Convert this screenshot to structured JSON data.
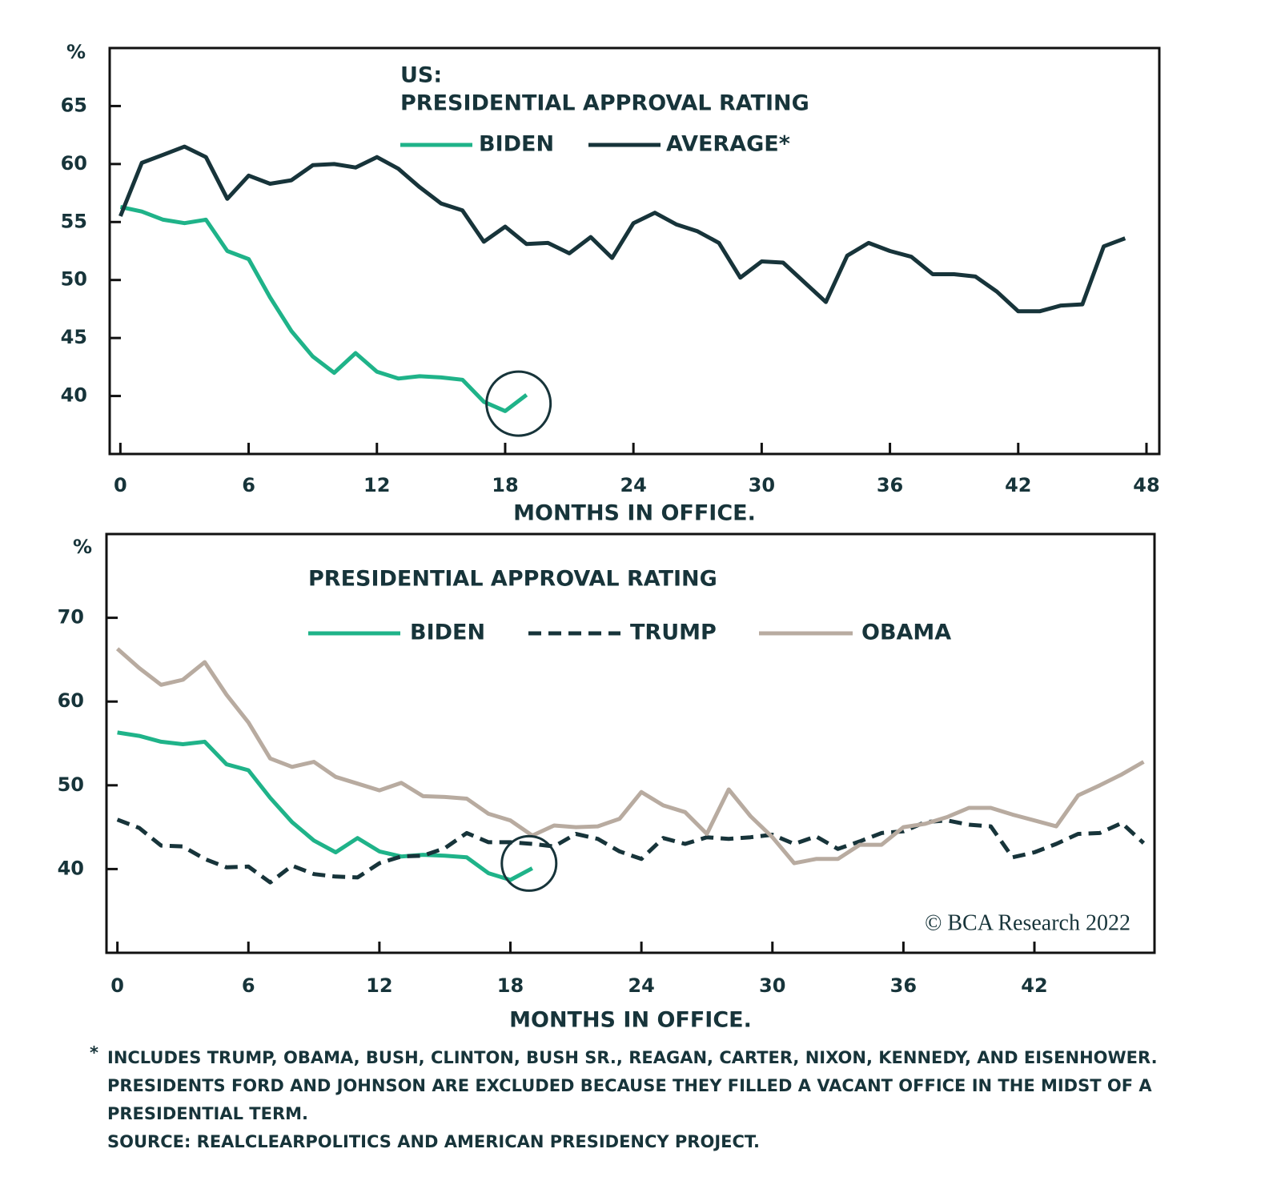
{
  "chart_data": [
    {
      "type": "line",
      "title": [
        "US:",
        "PRESIDENTIAL APPROVAL RATING"
      ],
      "y_unit": "%",
      "x_label": "MONTHS IN OFFICE.",
      "x": [
        0,
        1,
        2,
        3,
        4,
        5,
        6,
        7,
        8,
        9,
        10,
        11,
        12,
        13,
        14,
        15,
        16,
        17,
        18,
        19,
        20,
        21,
        22,
        23,
        24,
        25,
        26,
        27,
        28,
        29,
        30,
        31,
        32,
        33,
        34,
        35,
        36,
        37,
        38,
        39,
        40,
        41,
        42,
        43,
        44,
        45,
        46,
        47
      ],
      "xlim": [
        -0.5,
        48.6
      ],
      "xticks": [
        0,
        6,
        12,
        18,
        24,
        30,
        36,
        42,
        48
      ],
      "ylim": [
        35,
        70
      ],
      "yticks": [
        40,
        45,
        50,
        55,
        60,
        65
      ],
      "series": [
        {
          "name": "BIDEN",
          "color": "#1fb389",
          "values": [
            56.3,
            55.9,
            55.2,
            54.9,
            55.2,
            52.5,
            51.8,
            48.5,
            45.6,
            43.4,
            42.0,
            43.7,
            42.1,
            41.5,
            41.7,
            41.6,
            41.4,
            39.5,
            38.7,
            40.1,
            null,
            null,
            null,
            null,
            null,
            null,
            null,
            null,
            null,
            null,
            null,
            null,
            null,
            null,
            null,
            null,
            null,
            null,
            null,
            null,
            null,
            null,
            null,
            null,
            null,
            null,
            null,
            null
          ]
        },
        {
          "name": "AVERAGE*",
          "color": "#17343a",
          "values": [
            55.5,
            60.1,
            60.8,
            61.5,
            60.6,
            57.0,
            59.0,
            58.3,
            58.6,
            59.9,
            60.0,
            59.7,
            60.6,
            59.6,
            58.0,
            56.6,
            56.0,
            53.3,
            54.6,
            53.1,
            53.2,
            52.3,
            53.7,
            51.9,
            54.9,
            55.8,
            54.8,
            54.2,
            53.2,
            50.2,
            51.6,
            51.5,
            49.8,
            48.1,
            52.1,
            53.2,
            52.5,
            52.0,
            50.5,
            50.5,
            50.3,
            49.0,
            47.3,
            47.3,
            47.8,
            47.9,
            52.9,
            53.6
          ]
        }
      ]
    },
    {
      "type": "line",
      "title": [
        "PRESIDENTIAL APPROVAL RATING"
      ],
      "y_unit": "%",
      "x_label": "MONTHS IN OFFICE.",
      "watermark": "© BCA Research 2022",
      "x": [
        0,
        1,
        2,
        3,
        4,
        5,
        6,
        7,
        8,
        9,
        10,
        11,
        12,
        13,
        14,
        15,
        16,
        17,
        18,
        19,
        20,
        21,
        22,
        23,
        24,
        25,
        26,
        27,
        28,
        29,
        30,
        31,
        32,
        33,
        34,
        35,
        36,
        37,
        38,
        39,
        40,
        41,
        42,
        43,
        44,
        45,
        46,
        47
      ],
      "xlim": [
        -0.5,
        47.5
      ],
      "xticks": [
        0,
        6,
        12,
        18,
        24,
        30,
        36,
        42
      ],
      "ylim": [
        30,
        80
      ],
      "yticks": [
        40,
        50,
        60,
        70
      ],
      "series": [
        {
          "name": "BIDEN",
          "color": "#1fb389",
          "values": [
            56.3,
            55.9,
            55.2,
            54.9,
            55.2,
            52.5,
            51.8,
            48.5,
            45.6,
            43.4,
            42.0,
            43.7,
            42.1,
            41.5,
            41.7,
            41.6,
            41.4,
            39.5,
            38.7,
            40.1,
            null,
            null,
            null,
            null,
            null,
            null,
            null,
            null,
            null,
            null,
            null,
            null,
            null,
            null,
            null,
            null,
            null,
            null,
            null,
            null,
            null,
            null,
            null,
            null,
            null,
            null,
            null,
            null
          ]
        },
        {
          "name": "TRUMP",
          "color": "#17343a",
          "dashed": true,
          "values": [
            45.9,
            44.9,
            42.8,
            42.7,
            41.2,
            40.2,
            40.3,
            38.4,
            40.4,
            39.4,
            39.1,
            39.0,
            40.7,
            41.5,
            41.6,
            42.5,
            44.3,
            43.2,
            43.2,
            43.0,
            42.7,
            44.2,
            43.6,
            42.1,
            41.2,
            43.7,
            43.0,
            43.8,
            43.6,
            43.8,
            44.1,
            43.0,
            43.9,
            42.4,
            43.3,
            44.3,
            44.5,
            45.6,
            45.8,
            45.3,
            45.1,
            41.4,
            42.0,
            43.0,
            44.2,
            44.3,
            45.5,
            43.1
          ]
        },
        {
          "name": "OBAMA",
          "color": "#b8aba0",
          "values": [
            66.3,
            64.0,
            62.0,
            62.6,
            64.7,
            60.8,
            57.5,
            53.2,
            52.2,
            52.8,
            51.0,
            50.2,
            49.4,
            50.3,
            48.7,
            48.6,
            48.4,
            46.6,
            45.8,
            44.0,
            45.2,
            45.0,
            45.1,
            46.0,
            49.2,
            47.6,
            46.8,
            44.2,
            49.5,
            46.3,
            43.8,
            40.7,
            41.2,
            41.2,
            42.9,
            42.9,
            45.0,
            45.4,
            46.2,
            47.3,
            47.3,
            46.5,
            45.8,
            45.1,
            48.8,
            50.0,
            51.3,
            52.8
          ]
        }
      ]
    }
  ],
  "footnote": {
    "marker": "*",
    "lines": [
      "INCLUDES TRUMP, OBAMA, BUSH, CLINTON, BUSH SR., REAGAN, CARTER, NIXON, KENNEDY, AND EISENHOWER.",
      "PRESIDENTS FORD AND JOHNSON ARE EXCLUDED BECAUSE THEY FILLED A VACANT OFFICE IN THE MIDST OF A",
      "PRESIDENTIAL TERM.",
      "SOURCE: REALCLEARPOLITICS AND AMERICAN PRESIDENCY PROJECT."
    ]
  }
}
